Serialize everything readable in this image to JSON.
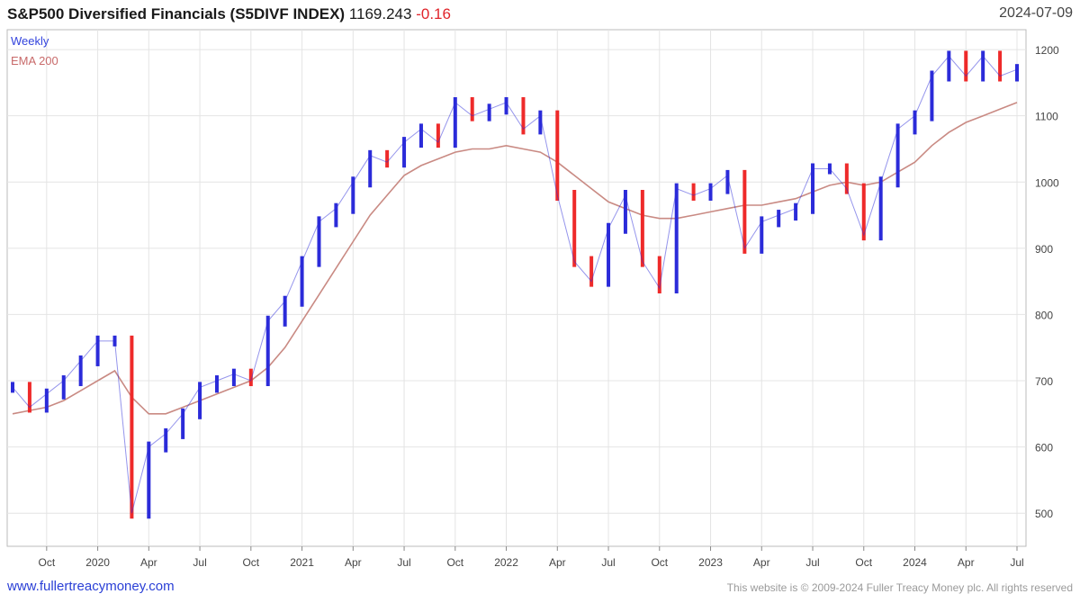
{
  "header": {
    "title_name": "S&P500 Diversified Financials (S5DIVF INDEX)",
    "price": "1169.243",
    "change": "-0.16",
    "date": "2024-07-09"
  },
  "footer": {
    "website": "www.fullertreacymoney.com",
    "copyright": "This website is © 2009-2024 Fuller Treacy Money plc. All rights reserved"
  },
  "colors": {
    "up_bar": "#2b2bd9",
    "down_bar": "#ee2a2a",
    "ema": "#c98a83",
    "grid": "#e4e4e4"
  },
  "chart_data": {
    "type": "line",
    "title": "S&P500 Diversified Financials (S5DIVF INDEX) 1169.243 -0.16",
    "series": [
      {
        "name": "Weekly",
        "x": [
          "2019-08",
          "2019-09",
          "2019-10",
          "2019-11",
          "2019-12",
          "2020-01",
          "2020-02",
          "2020-03",
          "2020-04",
          "2020-05",
          "2020-06",
          "2020-07",
          "2020-08",
          "2020-09",
          "2020-10",
          "2020-11",
          "2020-12",
          "2021-01",
          "2021-02",
          "2021-03",
          "2021-04",
          "2021-05",
          "2021-06",
          "2021-07",
          "2021-08",
          "2021-09",
          "2021-10",
          "2021-11",
          "2021-12",
          "2022-01",
          "2022-02",
          "2022-03",
          "2022-04",
          "2022-05",
          "2022-06",
          "2022-07",
          "2022-08",
          "2022-09",
          "2022-10",
          "2022-11",
          "2022-12",
          "2023-01",
          "2023-02",
          "2023-03",
          "2023-04",
          "2023-05",
          "2023-06",
          "2023-07",
          "2023-08",
          "2023-09",
          "2023-10",
          "2023-11",
          "2023-12",
          "2024-01",
          "2024-02",
          "2024-03",
          "2024-04",
          "2024-05",
          "2024-06",
          "2024-07"
        ],
        "values": [
          690,
          660,
          680,
          700,
          730,
          760,
          760,
          500,
          600,
          620,
          650,
          690,
          700,
          710,
          700,
          790,
          820,
          880,
          940,
          960,
          1000,
          1040,
          1030,
          1060,
          1080,
          1060,
          1120,
          1100,
          1110,
          1120,
          1080,
          1100,
          980,
          880,
          850,
          930,
          980,
          880,
          840,
          990,
          980,
          990,
          1010,
          900,
          940,
          950,
          960,
          1020,
          1020,
          990,
          920,
          1000,
          1080,
          1100,
          1160,
          1190,
          1160,
          1190,
          1160,
          1170
        ]
      },
      {
        "name": "EMA 200",
        "x": [
          "2019-08",
          "2019-09",
          "2019-10",
          "2019-11",
          "2019-12",
          "2020-01",
          "2020-02",
          "2020-03",
          "2020-04",
          "2020-05",
          "2020-06",
          "2020-07",
          "2020-08",
          "2020-09",
          "2020-10",
          "2020-11",
          "2020-12",
          "2021-01",
          "2021-02",
          "2021-03",
          "2021-04",
          "2021-05",
          "2021-06",
          "2021-07",
          "2021-08",
          "2021-09",
          "2021-10",
          "2021-11",
          "2021-12",
          "2022-01",
          "2022-02",
          "2022-03",
          "2022-04",
          "2022-05",
          "2022-06",
          "2022-07",
          "2022-08",
          "2022-09",
          "2022-10",
          "2022-11",
          "2022-12",
          "2023-01",
          "2023-02",
          "2023-03",
          "2023-04",
          "2023-05",
          "2023-06",
          "2023-07",
          "2023-08",
          "2023-09",
          "2023-10",
          "2023-11",
          "2023-12",
          "2024-01",
          "2024-02",
          "2024-03",
          "2024-04",
          "2024-05",
          "2024-06",
          "2024-07"
        ],
        "values": [
          650,
          655,
          660,
          670,
          685,
          700,
          715,
          675,
          650,
          650,
          660,
          670,
          680,
          690,
          700,
          720,
          750,
          790,
          830,
          870,
          910,
          950,
          980,
          1010,
          1025,
          1035,
          1045,
          1050,
          1050,
          1055,
          1050,
          1045,
          1030,
          1010,
          990,
          970,
          960,
          950,
          945,
          945,
          950,
          955,
          960,
          965,
          965,
          970,
          975,
          985,
          995,
          1000,
          995,
          1000,
          1015,
          1030,
          1055,
          1075,
          1090,
          1100,
          1110,
          1120
        ]
      }
    ],
    "x_tick_labels": [
      "Oct",
      "2020",
      "Apr",
      "Jul",
      "Oct",
      "2021",
      "Apr",
      "Jul",
      "Oct",
      "2022",
      "Apr",
      "Jul",
      "Oct",
      "2023",
      "Apr",
      "Jul",
      "Oct",
      "2024",
      "Apr",
      "Jul"
    ],
    "y_ticks": [
      500,
      600,
      700,
      800,
      900,
      1000,
      1100,
      1200
    ],
    "ylim": [
      450,
      1230
    ],
    "grid": true,
    "legend": "top-left",
    "xlabel": "",
    "ylabel": ""
  }
}
